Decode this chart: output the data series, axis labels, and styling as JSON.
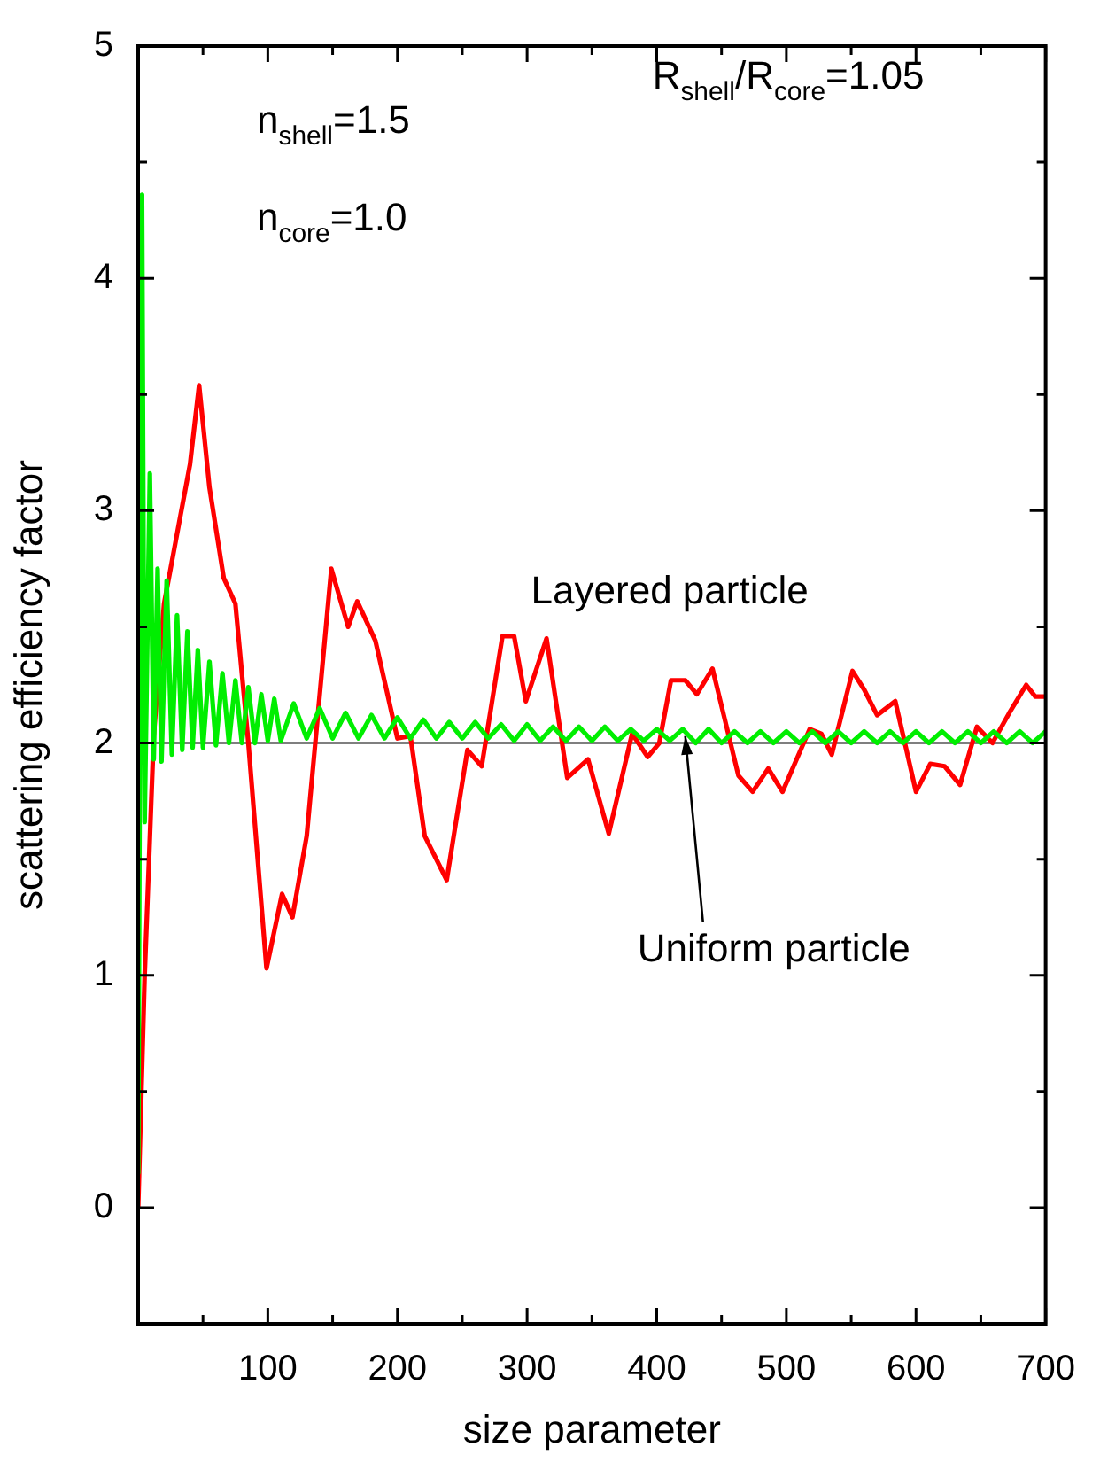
{
  "chart_data": {
    "type": "line",
    "xlabel": "size parameter",
    "ylabel": "scattering efficiency factor",
    "xlim": [
      0,
      700
    ],
    "ylim": [
      -0.5,
      5
    ],
    "xticks": [
      {
        "value": 50,
        "label": null
      },
      100,
      {
        "value": 150,
        "label": null
      },
      200,
      {
        "value": 250,
        "label": null
      },
      300,
      {
        "value": 350,
        "label": null
      },
      400,
      {
        "value": 450,
        "label": null
      },
      500,
      {
        "value": 550,
        "label": null
      },
      600,
      {
        "value": 650,
        "label": null
      },
      700
    ],
    "yticks": [
      0,
      {
        "value": 0.5,
        "label": null
      },
      1,
      {
        "value": 1.5,
        "label": null
      },
      2,
      {
        "value": 2.5,
        "label": null
      },
      3,
      {
        "value": 3.5,
        "label": null
      },
      4,
      {
        "value": 4.5,
        "label": null
      },
      5
    ],
    "grid": false,
    "legend": false,
    "marker": "none",
    "line_style": "solid",
    "ref_lines": [
      {
        "axis": "y",
        "value": 2,
        "color": "#000000"
      }
    ],
    "annotations": [
      "n$_{shell}$=1.5",
      "n$_{core}$=1.0",
      "R$_{shell}$/R$_{core}$=1.05",
      {
        "text": "Uniform particle",
        "x": 422,
        "y": 2.03
      }
    ],
    "series": [
      {
        "color": "#00ee00",
        "x": [
          0,
          3,
          5,
          9,
          12,
          15,
          18,
          22,
          26,
          30,
          34,
          38,
          42,
          46,
          50,
          55,
          60,
          65,
          70,
          75,
          80,
          85,
          90,
          95,
          100,
          105,
          110,
          120,
          130,
          140,
          150,
          160,
          170,
          180,
          190,
          200,
          210,
          220,
          230,
          240,
          250,
          260,
          270,
          280,
          290,
          300,
          310,
          320,
          330,
          340,
          350,
          360,
          370,
          380,
          390,
          400,
          410,
          420,
          430,
          440,
          450,
          460,
          470,
          480,
          490,
          500,
          510,
          520,
          530,
          540,
          550,
          560,
          570,
          580,
          590,
          600,
          610,
          620,
          630,
          640,
          650,
          660,
          670,
          680,
          690,
          700
        ],
        "values": [
          0.15,
          4.36,
          1.66,
          3.16,
          1.93,
          2.75,
          1.92,
          2.7,
          1.95,
          2.55,
          1.97,
          2.48,
          1.98,
          2.4,
          1.98,
          2.35,
          1.99,
          2.3,
          2.0,
          2.27,
          2.0,
          2.24,
          2.0,
          2.21,
          2.01,
          2.19,
          2.01,
          2.17,
          2.02,
          2.15,
          2.02,
          2.13,
          2.02,
          2.12,
          2.02,
          2.11,
          2.02,
          2.1,
          2.02,
          2.09,
          2.02,
          2.09,
          2.02,
          2.08,
          2.01,
          2.08,
          2.01,
          2.07,
          2.01,
          2.07,
          2.01,
          2.07,
          2.01,
          2.06,
          2.01,
          2.06,
          2.01,
          2.06,
          2.0,
          2.06,
          2.0,
          2.05,
          2.0,
          2.05,
          2.0,
          2.05,
          2.0,
          2.05,
          2.0,
          2.05,
          2.0,
          2.05,
          2.0,
          2.05,
          2.0,
          2.05,
          2.0,
          2.05,
          2.0,
          2.05,
          2.0,
          2.05,
          2.0,
          2.05,
          2.0,
          2.05
        ]
      },
      {
        "name": "Layered particle",
        "color": "#ff0000",
        "x": [
          0,
          5,
          12,
          20,
          30,
          40,
          47,
          55,
          66,
          75,
          85,
          99,
          111,
          119,
          130,
          149,
          162,
          169,
          183,
          200,
          210,
          221,
          238,
          254,
          265,
          281,
          290,
          299,
          315,
          331,
          347,
          363,
          381,
          393,
          402,
          411,
          422,
          431,
          443,
          463,
          474,
          486,
          497,
          511,
          518,
          527,
          535,
          551,
          560,
          570,
          584,
          600,
          611,
          622,
          634,
          647,
          659,
          672,
          685,
          692,
          700
        ],
        "values": [
          0,
          1.0,
          2.03,
          2.6,
          2.9,
          3.2,
          3.54,
          3.1,
          2.71,
          2.6,
          2.0,
          1.03,
          1.35,
          1.25,
          1.6,
          2.75,
          2.5,
          2.61,
          2.44,
          2.02,
          2.03,
          1.6,
          1.41,
          1.97,
          1.9,
          2.46,
          2.46,
          2.18,
          2.45,
          1.85,
          1.93,
          1.61,
          2.04,
          1.94,
          2.0,
          2.27,
          2.27,
          2.21,
          2.32,
          1.86,
          1.79,
          1.89,
          1.79,
          1.97,
          2.06,
          2.04,
          1.95,
          2.31,
          2.23,
          2.12,
          2.18,
          1.79,
          1.91,
          1.9,
          1.82,
          2.07,
          2.0,
          2.13,
          2.25,
          2.2,
          2.2
        ]
      }
    ]
  }
}
